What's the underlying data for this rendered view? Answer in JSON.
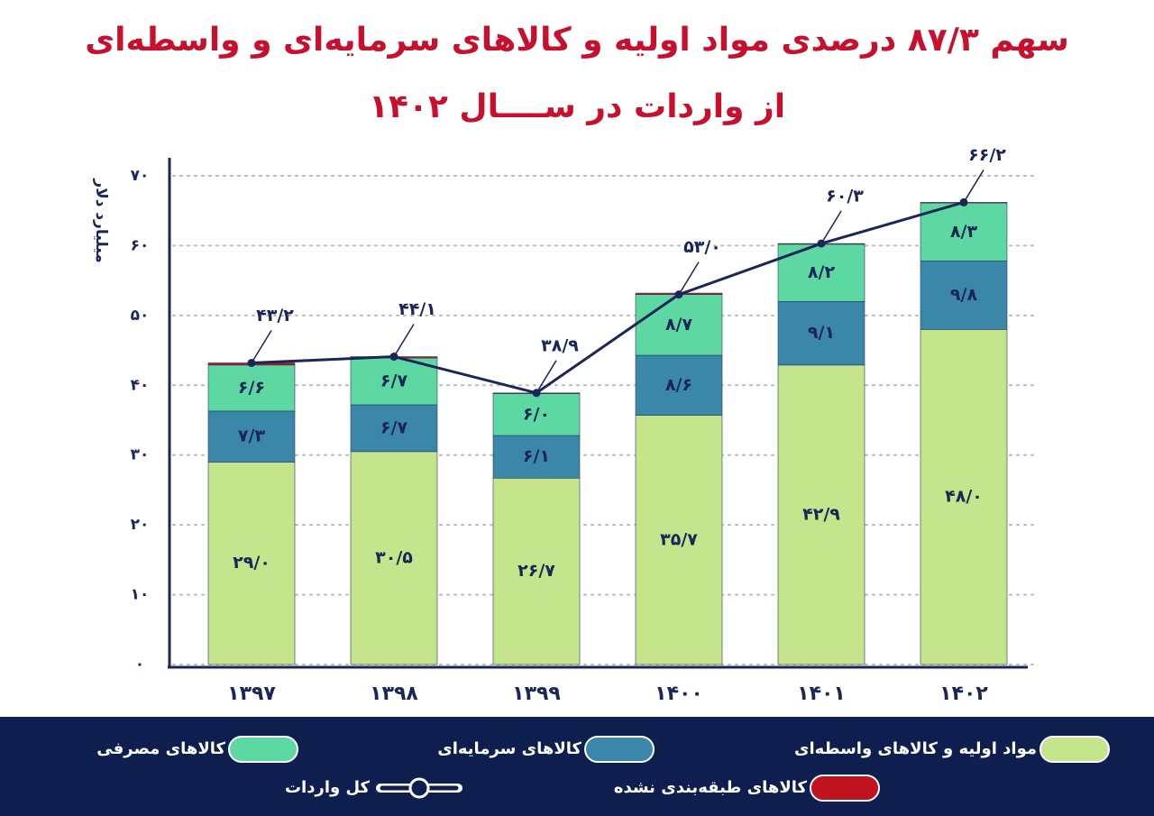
{
  "chart_data": {
    "type": "bar",
    "stacked": true,
    "title": "سهم ۸۷/۳ درصدی مواد اولیه و کالاهای سرمایه‌ای و واسطه‌ای",
    "subtitle": "از واردات در ســــال ۱۴۰۲",
    "y_label": "میلیارد دلار",
    "categories": [
      "۱۳۹۷",
      "۱۳۹۸",
      "۱۳۹۹",
      "۱۴۰۰",
      "۱۴۰۱",
      "۱۴۰۲"
    ],
    "series": [
      {
        "name": "مواد اولیه و کالاهای واسطه‌ای",
        "color": "#c5e58c",
        "values": [
          29.0,
          30.5,
          26.7,
          35.7,
          42.9,
          48.0
        ],
        "value_labels": [
          "۲۹/۰",
          "۳۰/۵",
          "۲۶/۷",
          "۳۵/۷",
          "۴۲/۹",
          "۴۸/۰"
        ]
      },
      {
        "name": "کالاهای سرمایه‌ای",
        "color": "#3b87a9",
        "values": [
          7.3,
          6.7,
          6.1,
          8.6,
          9.1,
          9.8
        ],
        "value_labels": [
          "۷/۳",
          "۶/۷",
          "۶/۱",
          "۸/۶",
          "۹/۱",
          "۹/۸"
        ]
      },
      {
        "name": "کالاهای مصرفی",
        "color": "#5ed8a2",
        "values": [
          6.6,
          6.7,
          6.0,
          8.7,
          8.2,
          8.3
        ],
        "value_labels": [
          "۶/۶",
          "۶/۷",
          "۶/۰",
          "۸/۷",
          "۸/۲",
          "۸/۳"
        ]
      },
      {
        "name": "کالاهای طبقه‌بندی نشده",
        "color": "#c1121f",
        "values": [
          0.3,
          0.2,
          0.1,
          0.2,
          0.1,
          0.1
        ]
      },
      {
        "name": "کل واردات",
        "color": "#1b2658",
        "type": "line",
        "values": [
          43.2,
          44.1,
          38.9,
          53.0,
          60.3,
          66.2
        ],
        "value_labels": [
          "۴۳/۲",
          "۴۴/۱",
          "۳۸/۹",
          "۵۳/۰",
          "۶۰/۳",
          "۶۶/۲"
        ]
      }
    ],
    "ylim": [
      0,
      70
    ],
    "yticks": [
      {
        "value": 0,
        "label": "۰"
      },
      {
        "value": 10,
        "label": "۱۰"
      },
      {
        "value": 20,
        "label": "۲۰"
      },
      {
        "value": 30,
        "label": "۳۰"
      },
      {
        "value": 40,
        "label": "۴۰"
      },
      {
        "value": 50,
        "label": "۵۰"
      },
      {
        "value": 60,
        "label": "۶۰"
      },
      {
        "value": 70,
        "label": "۷۰"
      }
    ],
    "grid": true,
    "legend": "bottom"
  }
}
